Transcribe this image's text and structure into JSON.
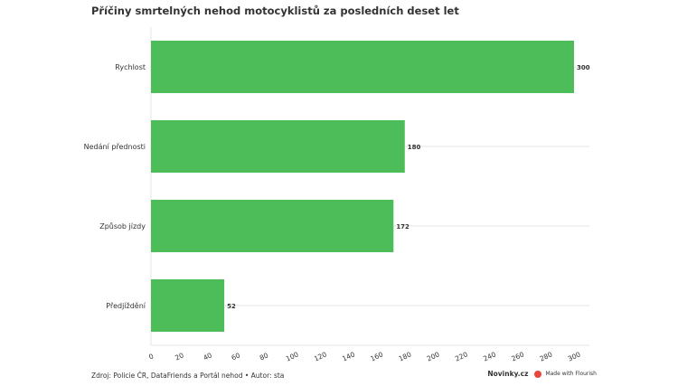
{
  "title": "Příčiny smrtelných nehod motocyklistů za posledních deset let",
  "footer": {
    "source": "Zdroj: Policie ČR, DataFriends a Portál nehod • Autor: sta",
    "publisher": "Novinky.cz",
    "flourish": "Made with Flourish"
  },
  "colors": {
    "bar": "#4cbd58",
    "grid": "#e6e6e6",
    "text": "#333333",
    "flourish": "#e8453c"
  },
  "chart_data": {
    "type": "bar",
    "orientation": "horizontal",
    "title": "Příčiny smrtelných nehod motocyklistů za posledních deset let",
    "categories": [
      "Rychlost",
      "Nedání přednosti",
      "Způsob jízdy",
      "Předjíždění"
    ],
    "values": [
      300,
      180,
      172,
      52
    ],
    "xlim": [
      0,
      300
    ],
    "xticks": [
      0,
      20,
      40,
      60,
      80,
      100,
      120,
      140,
      160,
      180,
      200,
      220,
      240,
      260,
      280,
      300
    ],
    "grid": true,
    "data_labels": true
  }
}
